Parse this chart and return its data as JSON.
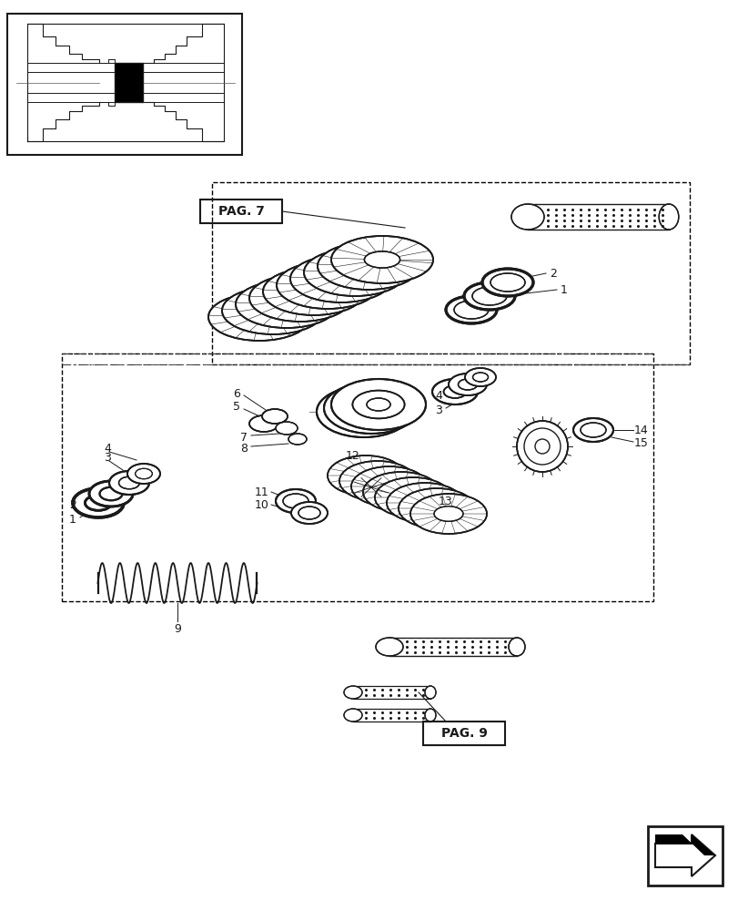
{
  "bg_color": "#ffffff",
  "lc": "#1a1a1a",
  "page_width": 8.12,
  "page_height": 10.0,
  "pag7_label": "PAG. 7",
  "pag9_label": "PAG. 9"
}
